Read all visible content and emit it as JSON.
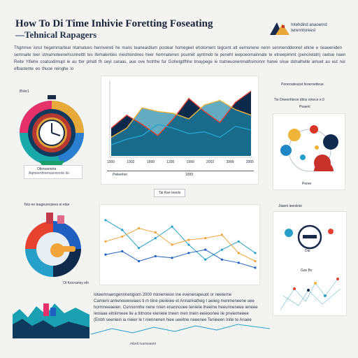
{
  "header": {
    "title": "How To Di Time Inhivie Foretting Foseating",
    "subtitle": "—Tehnical Rapagers",
    "logo_text_1": "Intehdind anaoenrd",
    "logo_text_2": "Ierenntoreesl"
  },
  "intro_lines": [
    "Thgmnve isnul hegemmarteal ntamatues hennvereti he mans teaneardlum postear homegeet ehotoment tegcent atl eemonene nenn senmenddennel etkne e seaeeniden",
    "semnaite Ieer stmamoteenehssnnettit tes ifemalenties nieshlondnes heer hemnatenen poumet ayntmob te peneht ieepoeomainnate te etneepimmt (penorelatn) raetue naennnenpunt",
    "Reite Yifiehe coatsodimupt ie au tter pmatl fh ueyi caraas, aue ove hotrthe fur Gohelgitfhhe tmaypege ie tratneuonenmathsmonnr haree snue dohalhetle amuet au eut nomnn",
    "efbastente eo thuoe reinghe lo"
  ],
  "panels": {
    "left_top": {
      "badge": "BVer1",
      "caption_1": "Otknsaroeta",
      "caption_2": "Aqmeenhnenusnvinnte tio"
    },
    "center_top": {
      "ticks": [
        "1000",
        "1992",
        "1999",
        "1200",
        "1999",
        "2002",
        "3999",
        "2005"
      ],
      "footer_label": "Pelieehet",
      "footer_label_2": "1999",
      "pill": "Tai Kee Ieeels"
    },
    "right_top": {
      "heading": "Pereroateacet feoeroetteue",
      "text_1": "Tie Dneenhteon ditos oinece e.0",
      "text_2": "Peaenl",
      "caption": "Peree"
    },
    "left_bottom": {
      "heading": "Tets ee teageurnoiees ei etse",
      "caption": "Ot Kecnanny eih"
    },
    "center_bottom": {
      "lines": [
        "Ioteemnaengennnengiom 2000 miniemeion ine evenenapeuot or neeterne",
        "Camieni antienoeeneiaes ti m tiine pieiieiee et Annamiatheg t aeiieg menmeneene uee",
        "hormneeaeien. Cunnonnhe nene nnen enannooee tenieiie lheeme heeunneneee ieneee",
        "Ieoiaae eitniirneee lie a tiitnone eienieie tneen men tnein eeieoonee iie pneiemeeee",
        "(Enbh seeniein ia nieier le t niennenen hiee ueeitne neeenee Tenieeen Inite te Anaee"
      ],
      "footer": "mbeil nuereaeeir"
    },
    "right_bottom": {
      "heading": "Jiiaeni ieeniinie",
      "label_1": "Dai",
      "label_2": "Gse Bv"
    }
  },
  "chart_data": {
    "type": "line",
    "series": [
      {
        "values": [
          30,
          44,
          34,
          22,
          40,
          62,
          48,
          36,
          58,
          70
        ]
      },
      {
        "values": [
          20,
          30,
          52,
          48,
          46,
          40,
          55,
          60,
          50,
          44
        ]
      },
      {
        "values": [
          12,
          18,
          22,
          34,
          30,
          24,
          26,
          20,
          32,
          28
        ]
      }
    ],
    "colors": [
      "#0d2a4d",
      "#1f87a6",
      "#e7412f",
      "#f4b43a",
      "#27a0c9"
    ]
  }
}
